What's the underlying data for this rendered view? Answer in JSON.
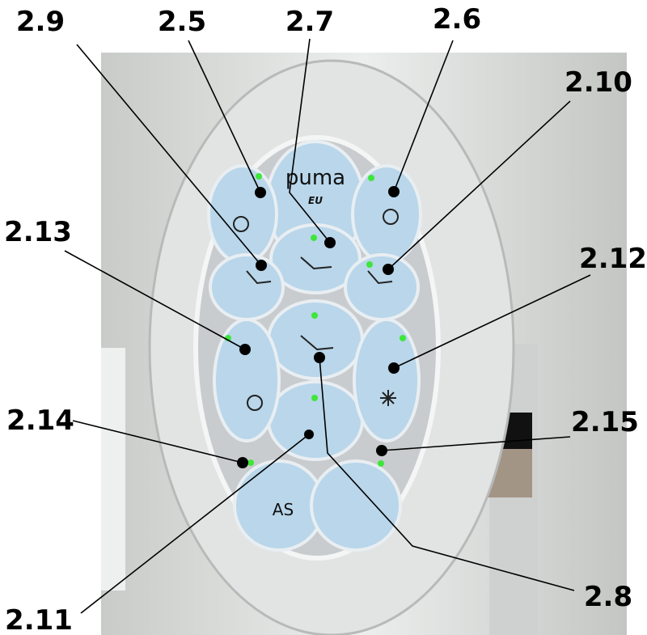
{
  "callouts": [
    "2.9",
    "2.5",
    "2.7",
    "2.6",
    "2.10",
    "2.13",
    "2.12",
    "2.14",
    "2.15",
    "2.8",
    "2.11"
  ],
  "panel": {
    "brand": "puma",
    "model": "EU",
    "auto_button": "AS"
  }
}
